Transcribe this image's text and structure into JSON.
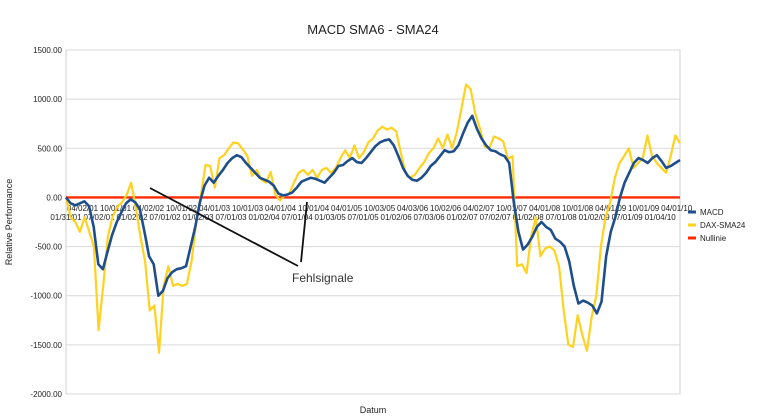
{
  "chart_data": {
    "type": "line",
    "title": "MACD SMA6 - SMA24",
    "xlabel": "Datum",
    "ylabel": "Relative Performance",
    "ylim": [
      -2000,
      1500
    ],
    "yticks": [
      1500,
      1000,
      500,
      0,
      -500,
      -1000,
      -1500,
      -2000
    ],
    "ytick_labels": [
      "1500.00",
      "1000.00",
      "500.00",
      "0.00",
      "-500.00",
      "-1000.00",
      "-1500.00",
      "-2000.00"
    ],
    "grid": "horizontal",
    "legend_position": "right",
    "x_tick_labels_row1": [
      "04/02/01",
      "10/01/01",
      "04/02/02",
      "10/01/02",
      "04/01/03",
      "10/01/03",
      "04/01/04",
      "10/01/04",
      "04/01/05",
      "10/03/05",
      "04/03/06",
      "10/02/06",
      "04/02/07",
      "10/01/07",
      "04/01/08",
      "10/01/08",
      "04/01/09",
      "10/01/09",
      "04/01/10"
    ],
    "x_tick_labels_row2": [
      "01/31/01",
      "07/02/01",
      "01/02/02",
      "07/01/02",
      "01/02/03",
      "07/01/03",
      "01/02/04",
      "07/01/04",
      "01/03/05",
      "07/01/05",
      "01/02/06",
      "07/03/06",
      "01/02/07",
      "07/02/07",
      "01/02/08",
      "07/01/08",
      "01/02/09",
      "07/01/09",
      "01/04/10"
    ],
    "series": [
      {
        "name": "MACD",
        "color": "#1f4e8c",
        "values": [
          0,
          -60,
          -80,
          -60,
          -40,
          -90,
          -300,
          -680,
          -730,
          -550,
          -380,
          -250,
          -150,
          -60,
          -20,
          -50,
          -120,
          -350,
          -600,
          -680,
          -1000,
          -950,
          -820,
          -760,
          -730,
          -720,
          -700,
          -500,
          -300,
          -50,
          120,
          200,
          150,
          220,
          280,
          350,
          400,
          430,
          410,
          350,
          300,
          250,
          200,
          180,
          160,
          120,
          40,
          20,
          30,
          50,
          100,
          160,
          180,
          200,
          190,
          170,
          150,
          200,
          250,
          320,
          330,
          370,
          400,
          360,
          350,
          400,
          460,
          520,
          560,
          580,
          590,
          530,
          420,
          300,
          220,
          180,
          170,
          200,
          250,
          320,
          360,
          420,
          480,
          460,
          470,
          530,
          650,
          760,
          830,
          700,
          600,
          530,
          480,
          470,
          440,
          420,
          350,
          -50,
          -350,
          -530,
          -480,
          -400,
          -300,
          -250,
          -300,
          -330,
          -420,
          -450,
          -500,
          -650,
          -900,
          -1080,
          -1050,
          -1070,
          -1100,
          -1180,
          -1060,
          -600,
          -350,
          -200,
          0,
          150,
          250,
          350,
          400,
          380,
          350,
          400,
          430,
          370,
          300,
          320,
          350,
          380
        ]
      },
      {
        "name": "DAX-SMA24",
        "color": "#ffd21f",
        "values": [
          0,
          -200,
          -250,
          -350,
          -200,
          -350,
          -500,
          -1350,
          -900,
          -400,
          -200,
          -100,
          -50,
          20,
          150,
          -100,
          -400,
          -650,
          -1150,
          -1100,
          -1580,
          -900,
          -700,
          -900,
          -880,
          -900,
          -880,
          -650,
          -250,
          20,
          330,
          320,
          100,
          400,
          430,
          500,
          560,
          550,
          490,
          420,
          220,
          280,
          180,
          150,
          260,
          30,
          -30,
          20,
          40,
          150,
          250,
          280,
          230,
          280,
          200,
          280,
          300,
          250,
          300,
          400,
          480,
          400,
          530,
          400,
          460,
          560,
          600,
          680,
          720,
          690,
          710,
          670,
          450,
          250,
          200,
          230,
          300,
          360,
          450,
          500,
          600,
          500,
          640,
          500,
          660,
          900,
          1150,
          1100,
          850,
          700,
          520,
          500,
          620,
          600,
          570,
          390,
          420,
          -700,
          -680,
          -770,
          -400,
          -200,
          -600,
          -520,
          -500,
          -540,
          -700,
          -1150,
          -1500,
          -1520,
          -1200,
          -1400,
          -1560,
          -1220,
          -1000,
          -500,
          -200,
          -50,
          200,
          350,
          420,
          500,
          300,
          350,
          400,
          630,
          420,
          350,
          300,
          250,
          420,
          630,
          550
        ]
      },
      {
        "name": "Nullinie",
        "color": "#ff2a00",
        "values": [
          0,
          0
        ]
      }
    ],
    "annotations": [
      {
        "text": "Fehlsignale"
      }
    ]
  }
}
